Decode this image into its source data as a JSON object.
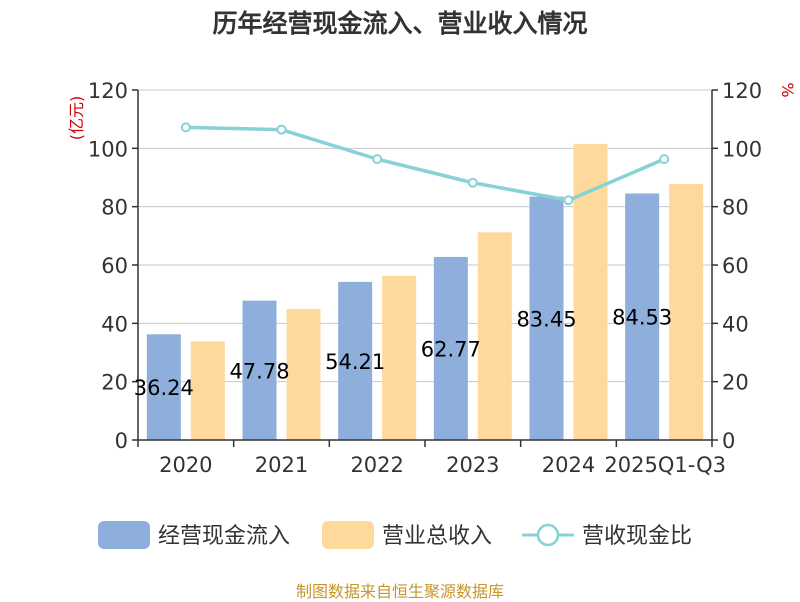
{
  "title": "历年经营现金流入、营业收入情况",
  "left_unit": "(亿元)",
  "right_unit": "%",
  "source": "制图数据来自恒生聚源数据库",
  "colors": {
    "inflow": "#8eaedb",
    "revenue": "#fed99b",
    "ratio": "#86d2d6",
    "axis": "#333333",
    "grid": "#c8c8c8"
  },
  "legend": [
    "经营现金流入",
    "营业总收入",
    "营收现金比"
  ],
  "chart_data": {
    "type": "bar",
    "title": "历年经营现金流入、营业收入情况",
    "categories": [
      "2020",
      "2021",
      "2022",
      "2023",
      "2024",
      "2025Q1-Q3"
    ],
    "ylim": [
      0,
      120
    ],
    "y_ticks": [
      0,
      20,
      40,
      60,
      80,
      100,
      120
    ],
    "y2lim": [
      0,
      120
    ],
    "y2_ticks": [
      0,
      20,
      40,
      60,
      80,
      100,
      120
    ],
    "grid": true,
    "legend_position": "bottom",
    "series": [
      {
        "name": "经营现金流入",
        "type": "bar",
        "axis": "left",
        "values": [
          36.24,
          47.78,
          54.21,
          62.77,
          83.45,
          84.53
        ],
        "labels": [
          "36.24",
          "47.78",
          "54.21",
          "62.77",
          "83.45",
          "84.53"
        ]
      },
      {
        "name": "营业总收入",
        "type": "bar",
        "axis": "left",
        "values": [
          33.8,
          44.9,
          56.3,
          71.2,
          101.5,
          87.8
        ]
      },
      {
        "name": "营收现金比",
        "type": "line",
        "axis": "right",
        "values": [
          107.2,
          106.4,
          96.3,
          88.2,
          82.2,
          96.3
        ]
      }
    ]
  }
}
